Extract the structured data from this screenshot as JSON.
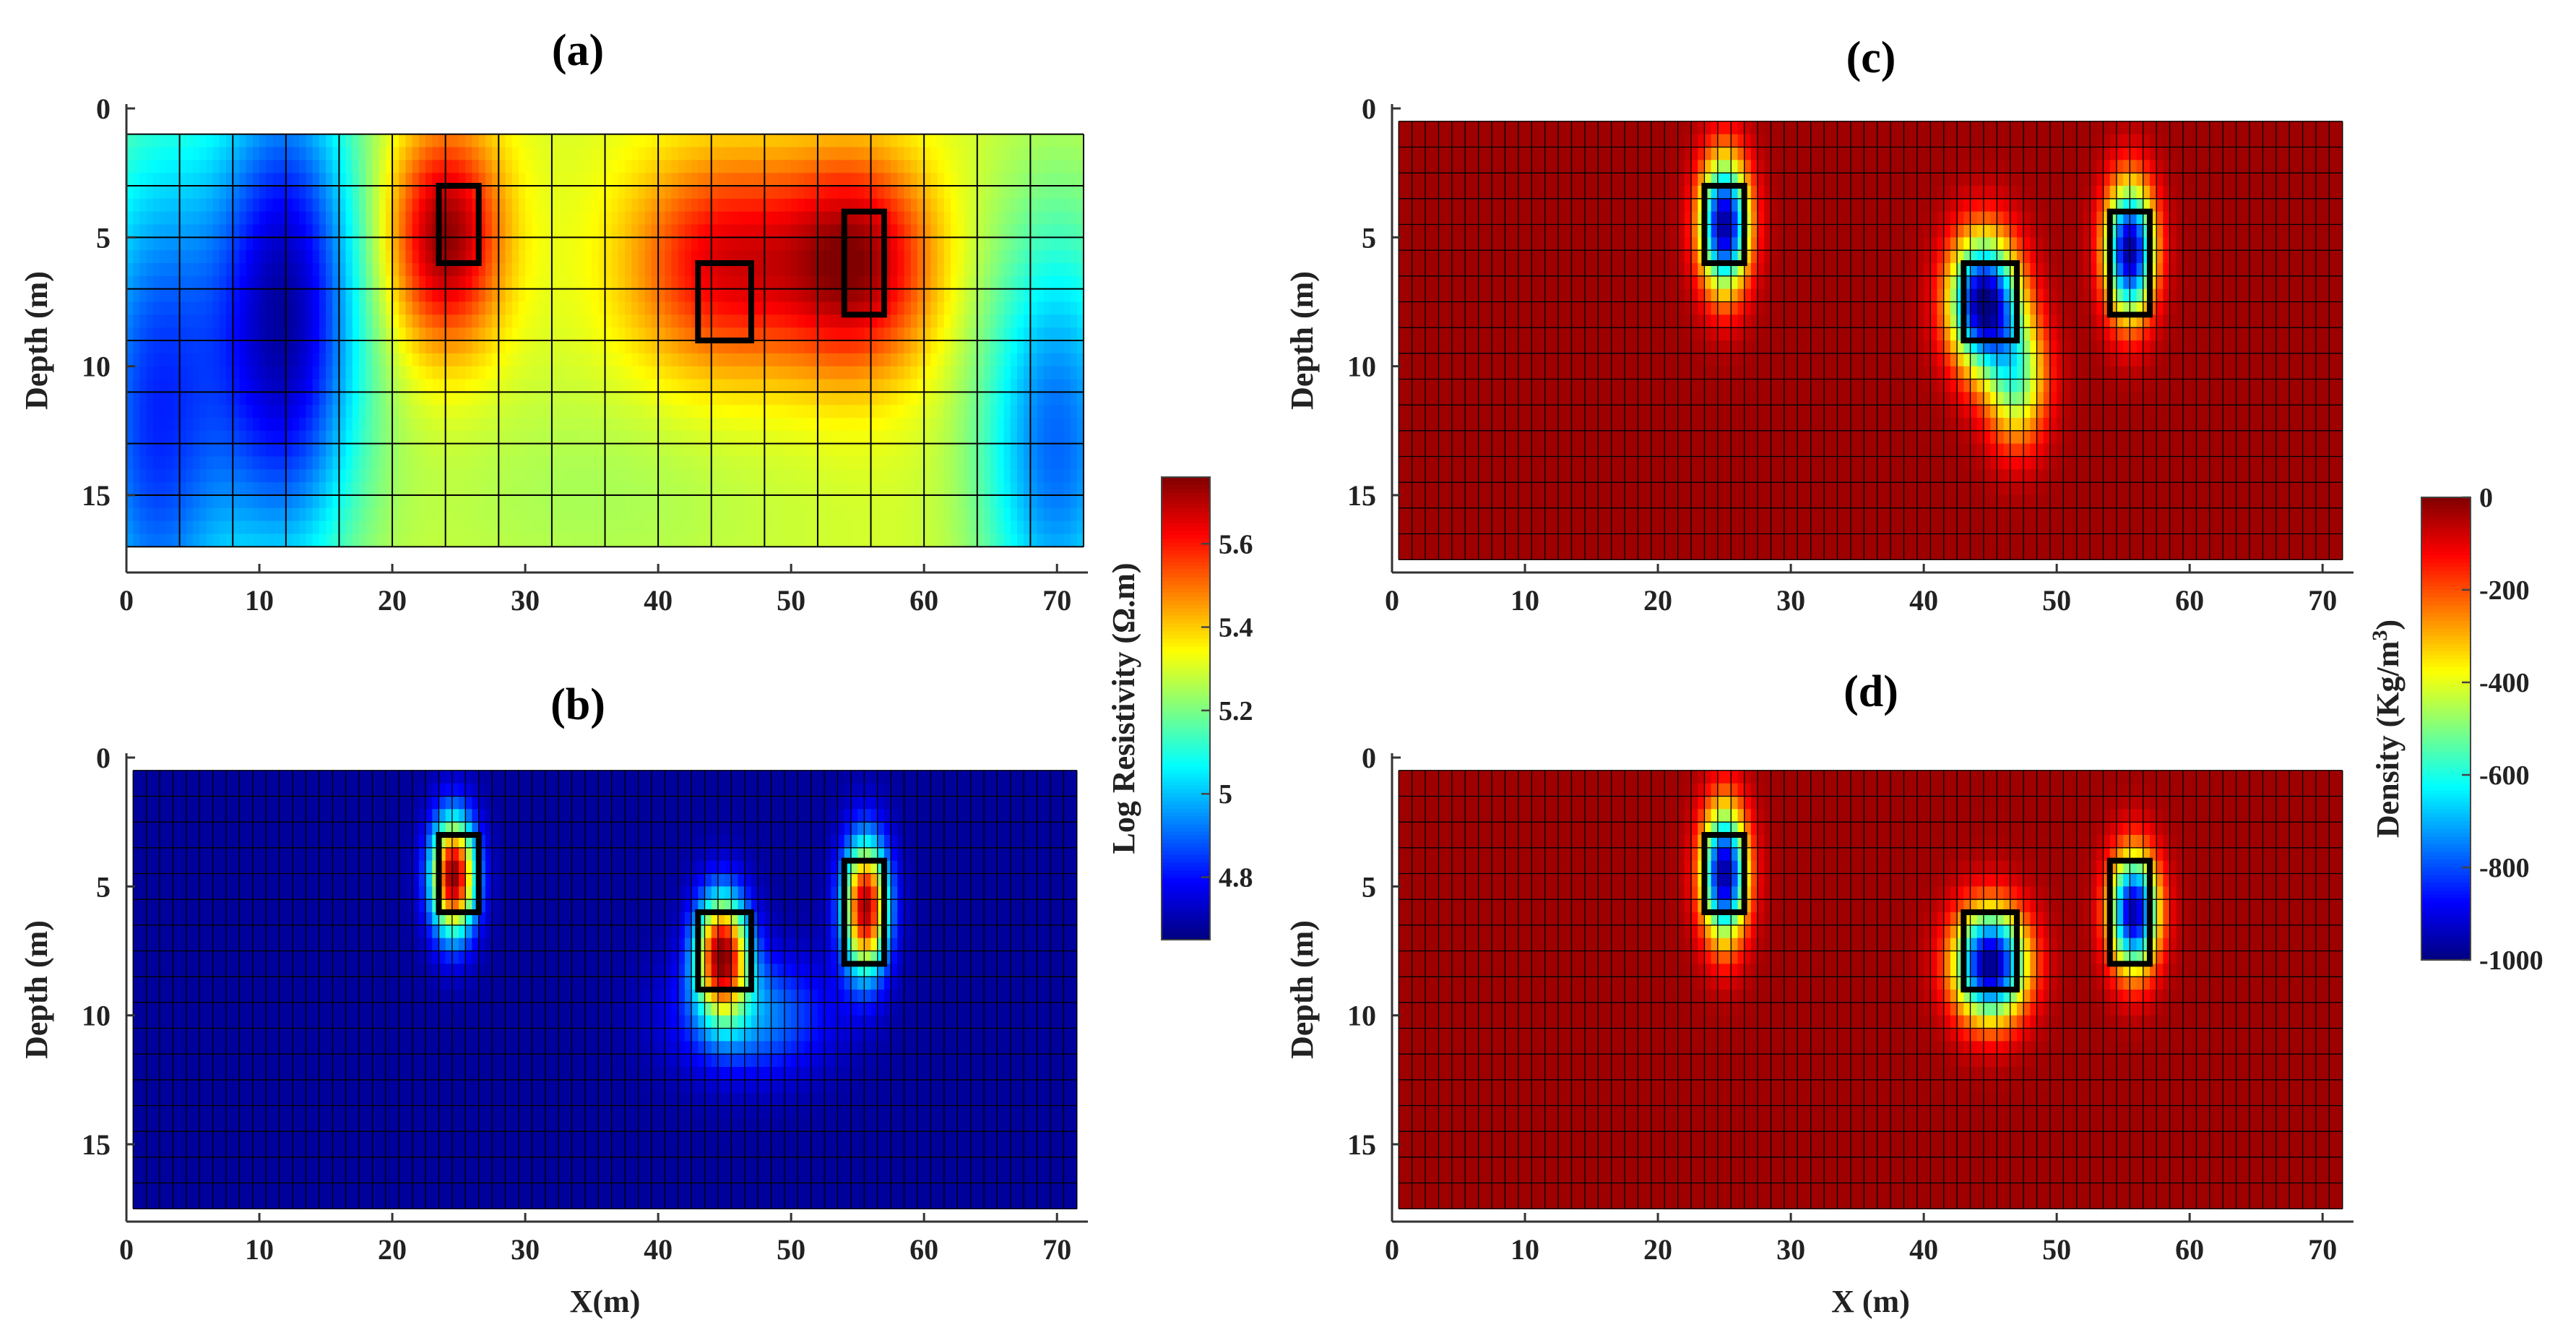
{
  "figure": {
    "colorbars": {
      "resistivity": {
        "label": "Log Resistivity (Ω.m)",
        "ticks": [
          "5.6",
          "5.4",
          "5.2",
          "5",
          "4.8"
        ],
        "tick_values": [
          5.6,
          5.4,
          5.2,
          5.0,
          4.8
        ],
        "range": [
          4.65,
          5.76
        ]
      },
      "density": {
        "label_main": "Density (Kg/m",
        "label_sup": "3",
        "label_close": ")",
        "ticks": [
          "0",
          "-200",
          "-400",
          "-600",
          "-800",
          "-1000"
        ],
        "tick_values": [
          0,
          -200,
          -400,
          -600,
          -800,
          -1000
        ],
        "range": [
          -1000,
          0
        ]
      }
    }
  },
  "chart_data": [
    {
      "id": "a",
      "title": "(a)",
      "type": "heatmap",
      "xlabel": "",
      "ylabel": "Depth (m)",
      "xlim": [
        0,
        72
      ],
      "ylim": [
        0,
        18
      ],
      "xticks": [
        "0",
        "10",
        "20",
        "30",
        "40",
        "50",
        "60",
        "70"
      ],
      "yticks": [
        "0",
        "5",
        "10",
        "15"
      ],
      "colormap": "jet",
      "colorbar": "resistivity",
      "data_extent": {
        "x": [
          0,
          72
        ],
        "y": [
          1,
          17
        ]
      },
      "grid_x": [
        0,
        4,
        8,
        12,
        16,
        20,
        24,
        28,
        32,
        36,
        40,
        44,
        48,
        52,
        56,
        60,
        64,
        68,
        72
      ],
      "grid_y": [
        1,
        3,
        5,
        7,
        9,
        11,
        13,
        15,
        17
      ],
      "background_value": 5.3,
      "anomalies": [
        {
          "x": 12,
          "y": 8,
          "sx": 4,
          "sy": 7,
          "value": 4.7
        },
        {
          "x": 2,
          "y": 12,
          "sx": 4,
          "sy": 8,
          "value": 4.85
        },
        {
          "x": 70,
          "y": 13,
          "sx": 4,
          "sy": 6,
          "value": 4.9
        },
        {
          "x": 35,
          "y": 15,
          "sx": 10,
          "sy": 3,
          "value": 5.25
        },
        {
          "x": 24,
          "y": 5,
          "sx": 3,
          "sy": 3,
          "value": 5.75
        },
        {
          "x": 45,
          "y": 6,
          "sx": 5,
          "sy": 3,
          "value": 5.65
        },
        {
          "x": 55,
          "y": 6,
          "sx": 4,
          "sy": 3,
          "value": 5.72
        }
      ],
      "targets": [
        {
          "x0": 23.5,
          "x1": 26.5,
          "y0": 3,
          "y1": 6
        },
        {
          "x0": 43,
          "x1": 47,
          "y0": 6,
          "y1": 9
        },
        {
          "x0": 54,
          "x1": 57,
          "y0": 4,
          "y1": 8
        }
      ]
    },
    {
      "id": "b",
      "title": "(b)",
      "type": "heatmap",
      "xlabel": "X(m)",
      "ylabel": "Depth (m)",
      "xlim": [
        0,
        72
      ],
      "ylim": [
        0,
        18
      ],
      "xticks": [
        "0",
        "10",
        "20",
        "30",
        "40",
        "50",
        "60",
        "70"
      ],
      "yticks": [
        "0",
        "5",
        "10",
        "15"
      ],
      "colormap": "jet",
      "colorbar": "resistivity",
      "data_extent": {
        "x": [
          0.5,
          71.5
        ],
        "y": [
          0.5,
          17.5
        ]
      },
      "grid_step": 1,
      "background_value": 4.68,
      "anomalies": [
        {
          "x": 24.6,
          "y": 4.6,
          "sx": 1.2,
          "sy": 1.6,
          "value": 5.75
        },
        {
          "x": 44.8,
          "y": 7.6,
          "sx": 1.4,
          "sy": 1.6,
          "value": 5.7
        },
        {
          "x": 55.6,
          "y": 5.8,
          "sx": 1.2,
          "sy": 1.8,
          "value": 5.72
        },
        {
          "x": 47,
          "y": 10,
          "sx": 4,
          "sy": 1.6,
          "value": 4.95
        }
      ],
      "targets": [
        {
          "x0": 23.5,
          "x1": 26.5,
          "y0": 3,
          "y1": 6
        },
        {
          "x0": 43,
          "x1": 47,
          "y0": 6,
          "y1": 9
        },
        {
          "x0": 54,
          "x1": 57,
          "y0": 4,
          "y1": 8
        }
      ]
    },
    {
      "id": "c",
      "title": "(c)",
      "type": "heatmap",
      "xlabel": "",
      "ylabel": "Depth (m)",
      "xlim": [
        0,
        72
      ],
      "ylim": [
        0,
        18
      ],
      "xticks": [
        "0",
        "10",
        "20",
        "30",
        "40",
        "50",
        "60",
        "70"
      ],
      "yticks": [
        "0",
        "5",
        "10",
        "15"
      ],
      "colormap": "jet",
      "colorbar": "density",
      "data_extent": {
        "x": [
          0.5,
          71.5
        ],
        "y": [
          0.5,
          17.5
        ]
      },
      "grid_step": 1,
      "background_value": -30,
      "anomalies": [
        {
          "x": 25,
          "y": 4.5,
          "sx": 1.3,
          "sy": 1.8,
          "value": -980
        },
        {
          "x": 44.5,
          "y": 7.5,
          "sx": 1.8,
          "sy": 1.8,
          "value": -1000
        },
        {
          "x": 55.5,
          "y": 5.5,
          "sx": 1.3,
          "sy": 1.8,
          "value": -980
        },
        {
          "x": 47,
          "y": 10.5,
          "sx": 1.6,
          "sy": 1.8,
          "value": -500
        }
      ],
      "targets": [
        {
          "x0": 23.5,
          "x1": 26.5,
          "y0": 3,
          "y1": 6
        },
        {
          "x0": 43,
          "x1": 47,
          "y0": 6,
          "y1": 9
        },
        {
          "x0": 54,
          "x1": 57,
          "y0": 4,
          "y1": 8
        }
      ]
    },
    {
      "id": "d",
      "title": "(d)",
      "type": "heatmap",
      "xlabel": "X (m)",
      "ylabel": "Depth (m)",
      "xlim": [
        0,
        72
      ],
      "ylim": [
        0,
        18
      ],
      "xticks": [
        "0",
        "10",
        "20",
        "30",
        "40",
        "50",
        "60",
        "70"
      ],
      "yticks": [
        "0",
        "5",
        "10",
        "15"
      ],
      "colormap": "jet",
      "colorbar": "density",
      "data_extent": {
        "x": [
          0.5,
          71.5
        ],
        "y": [
          0.5,
          17.5
        ]
      },
      "grid_step": 1,
      "background_value": -30,
      "anomalies": [
        {
          "x": 25,
          "y": 4.5,
          "sx": 1.2,
          "sy": 1.8,
          "value": -980
        },
        {
          "x": 45,
          "y": 8,
          "sx": 1.9,
          "sy": 1.5,
          "value": -1000
        },
        {
          "x": 55.8,
          "y": 6,
          "sx": 1.3,
          "sy": 1.6,
          "value": -960
        }
      ],
      "targets": [
        {
          "x0": 23.5,
          "x1": 26.5,
          "y0": 3,
          "y1": 6
        },
        {
          "x0": 43,
          "x1": 47,
          "y0": 6,
          "y1": 9
        },
        {
          "x0": 54,
          "x1": 57,
          "y0": 4,
          "y1": 8
        }
      ]
    }
  ]
}
